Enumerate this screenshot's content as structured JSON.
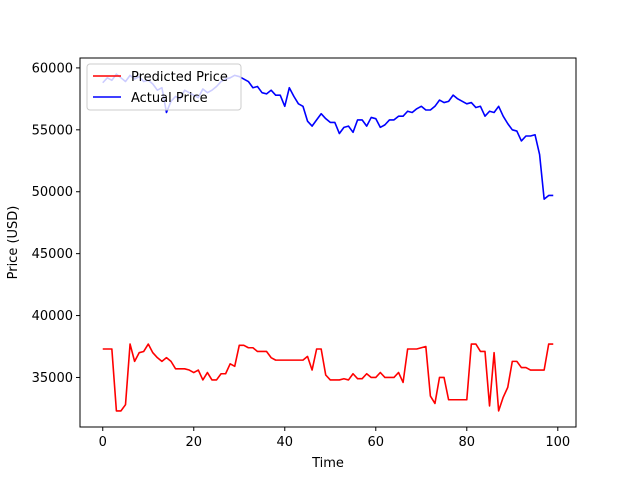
{
  "chart_data": {
    "type": "line",
    "title": "",
    "xlabel": "Time",
    "ylabel": "Price (USD)",
    "xlim": [
      -5,
      104
    ],
    "ylim": [
      31000,
      60800
    ],
    "xticks": [
      0,
      20,
      40,
      60,
      80,
      100
    ],
    "yticks": [
      35000,
      40000,
      45000,
      50000,
      55000,
      60000
    ],
    "xtick_labels": [
      "0",
      "20",
      "40",
      "60",
      "80",
      "100"
    ],
    "ytick_labels": [
      "35000",
      "40000",
      "45000",
      "50000",
      "55000",
      "60000"
    ],
    "grid": false,
    "legend_position": "top-left",
    "series": [
      {
        "name": "Predicted Price",
        "color": "#ff0000",
        "x": [
          0,
          1,
          2,
          3,
          4,
          5,
          6,
          7,
          8,
          9,
          10,
          11,
          12,
          13,
          14,
          15,
          16,
          17,
          18,
          19,
          20,
          21,
          22,
          23,
          24,
          25,
          26,
          27,
          28,
          29,
          30,
          31,
          32,
          33,
          34,
          35,
          36,
          37,
          38,
          39,
          40,
          41,
          42,
          43,
          44,
          45,
          46,
          47,
          48,
          49,
          50,
          51,
          52,
          53,
          54,
          55,
          56,
          57,
          58,
          59,
          60,
          61,
          62,
          63,
          64,
          65,
          66,
          67,
          68,
          69,
          70,
          71,
          72,
          73,
          74,
          75,
          76,
          77,
          78,
          79,
          80,
          81,
          82,
          83,
          84,
          85,
          86,
          87,
          88,
          89,
          90,
          91,
          92,
          93,
          94,
          95,
          96,
          97,
          98,
          99
        ],
        "values": [
          37300,
          37300,
          37300,
          32300,
          32300,
          32800,
          37700,
          36300,
          37000,
          37100,
          37700,
          37000,
          36600,
          36300,
          36600,
          36300,
          35700,
          35700,
          35700,
          35600,
          35400,
          35600,
          34800,
          35400,
          34800,
          34800,
          35300,
          35300,
          36100,
          35900,
          37600,
          37600,
          37400,
          37400,
          37100,
          37100,
          37100,
          36600,
          36400,
          36400,
          36400,
          36400,
          36400,
          36400,
          36400,
          36700,
          35600,
          37300,
          37300,
          35200,
          34800,
          34800,
          34800,
          34900,
          34800,
          35300,
          34900,
          34900,
          35300,
          35000,
          35000,
          35400,
          35000,
          35000,
          35000,
          35400,
          34600,
          37300,
          37300,
          37300,
          37400,
          37500,
          33500,
          32900,
          35000,
          35000,
          33200,
          33200,
          33200,
          33200,
          33200,
          37700,
          37700,
          37100,
          37100,
          32700,
          37000,
          32300,
          33400,
          34200,
          36300,
          36300,
          35800,
          35800,
          35600,
          35600,
          35600,
          35600,
          37700,
          37700
        ]
      },
      {
        "name": "Actual Price",
        "color": "#0000ff",
        "x": [
          0,
          1,
          2,
          3,
          4,
          5,
          6,
          7,
          8,
          9,
          10,
          11,
          12,
          13,
          14,
          15,
          16,
          17,
          18,
          19,
          20,
          21,
          22,
          23,
          24,
          25,
          26,
          27,
          28,
          29,
          30,
          31,
          32,
          33,
          34,
          35,
          36,
          37,
          38,
          39,
          40,
          41,
          42,
          43,
          44,
          45,
          46,
          47,
          48,
          49,
          50,
          51,
          52,
          53,
          54,
          55,
          56,
          57,
          58,
          59,
          60,
          61,
          62,
          63,
          64,
          65,
          66,
          67,
          68,
          69,
          70,
          71,
          72,
          73,
          74,
          75,
          76,
          77,
          78,
          79,
          80,
          81,
          82,
          83,
          84,
          85,
          86,
          87,
          88,
          89,
          90,
          91,
          92,
          93,
          94,
          95,
          96,
          97,
          98,
          99
        ],
        "values": [
          58800,
          59200,
          59000,
          59500,
          59200,
          58900,
          59400,
          59100,
          59300,
          58900,
          59000,
          58700,
          58200,
          58400,
          56400,
          57300,
          57700,
          57500,
          58200,
          58000,
          57800,
          57600,
          58300,
          58000,
          58200,
          58500,
          58900,
          59100,
          59200,
          59400,
          59300,
          59100,
          58900,
          58400,
          58500,
          58000,
          57900,
          58200,
          57800,
          57800,
          56900,
          58400,
          57700,
          57100,
          56900,
          55700,
          55300,
          55800,
          56300,
          55900,
          55600,
          55600,
          54700,
          55200,
          55300,
          54800,
          55800,
          55800,
          55300,
          56000,
          55900,
          55200,
          55400,
          55800,
          55800,
          56100,
          56100,
          56500,
          56400,
          56700,
          56900,
          56600,
          56600,
          56900,
          57400,
          57200,
          57300,
          57800,
          57500,
          57300,
          57100,
          57200,
          56800,
          56900,
          56100,
          56500,
          56400,
          56900,
          56100,
          55500,
          55000,
          54900,
          54100,
          54500,
          54500,
          54600,
          53000,
          49400,
          49700,
          49700
        ]
      }
    ]
  }
}
